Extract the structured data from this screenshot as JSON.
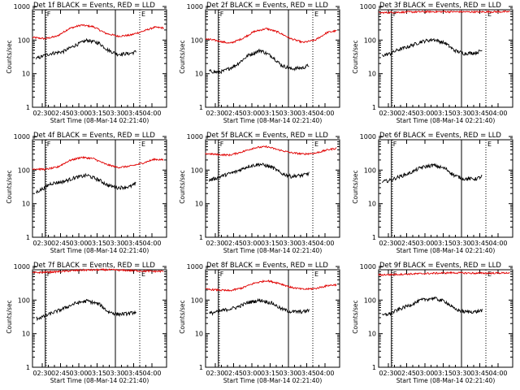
{
  "chart_data": [
    {
      "type": "line",
      "title": "Det 1f BLACK = Events, RED = LLD",
      "xlabel": "Start Time (08-Mar-14 02:21:40)",
      "ylabel": "Counts/sec",
      "yscale": "log",
      "ylim": [
        1,
        1000
      ],
      "x_ticks": [
        "02:30",
        "02:45",
        "03:00",
        "03:15",
        "03:30",
        "03:45",
        "04:00"
      ],
      "y_ticks": [
        "1",
        "10",
        "100",
        "1000"
      ],
      "markers": [
        {
          "label": "F",
          "at_min": 10.5
        },
        {
          "label": "",
          "at_min": 68
        },
        {
          "label": "E",
          "at_min": 88
        }
      ],
      "series": [
        {
          "name": "RED = LLD",
          "color": "#e00000",
          "x_min": [
            0,
            10,
            20,
            30,
            40,
            50,
            60,
            70,
            80,
            90,
            100,
            108
          ],
          "values": [
            120,
            110,
            130,
            220,
            280,
            250,
            160,
            130,
            140,
            180,
            240,
            230
          ]
        },
        {
          "name": "BLACK = Events",
          "color": "#000000",
          "x_min": [
            3,
            10,
            15,
            25,
            35,
            45,
            55,
            62,
            70,
            80,
            85
          ],
          "values": [
            28,
            35,
            40,
            45,
            70,
            100,
            80,
            50,
            38,
            40,
            45
          ]
        }
      ]
    },
    {
      "type": "line",
      "title": "Det 2f BLACK = Events, RED = LLD",
      "xlabel": "Start Time (08-Mar-14 02:21:40)",
      "ylabel": "Counts/sec",
      "yscale": "log",
      "ylim": [
        1,
        1000
      ],
      "x_ticks": [
        "02:30",
        "02:45",
        "03:00",
        "03:15",
        "03:30",
        "03:45",
        "04:00"
      ],
      "y_ticks": [
        "1",
        "10",
        "100",
        "1000"
      ],
      "markers": [
        {
          "label": "F",
          "at_min": 10.5
        },
        {
          "label": "",
          "at_min": 68
        },
        {
          "label": "E",
          "at_min": 88
        }
      ],
      "series": [
        {
          "name": "RED = LLD",
          "color": "#e00000",
          "x_min": [
            0,
            10,
            20,
            30,
            40,
            50,
            60,
            70,
            80,
            90,
            100,
            108
          ],
          "values": [
            110,
            95,
            80,
            110,
            180,
            220,
            170,
            110,
            85,
            100,
            170,
            190
          ]
        },
        {
          "name": "BLACK = Events",
          "color": "#000000",
          "x_min": [
            3,
            10,
            15,
            25,
            35,
            45,
            55,
            62,
            70,
            80,
            85
          ],
          "values": [
            12,
            11,
            12,
            18,
            35,
            50,
            32,
            18,
            14,
            15,
            18
          ]
        }
      ]
    },
    {
      "type": "line",
      "title": "Det 3f BLACK = Events, RED = LLD",
      "xlabel": "Start Time (08-Mar-14 02:21:40)",
      "ylabel": "Counts/sec",
      "yscale": "log",
      "ylim": [
        1,
        1000
      ],
      "x_ticks": [
        "02:30",
        "02:45",
        "03:00",
        "03:15",
        "03:30",
        "03:45",
        "04:00"
      ],
      "y_ticks": [
        "1",
        "10",
        "100",
        "1000"
      ],
      "markers": [
        {
          "label": "F",
          "at_min": 10.5
        },
        {
          "label": "",
          "at_min": 68
        },
        {
          "label": "E",
          "at_min": 88
        }
      ],
      "series": [
        {
          "name": "RED = LLD",
          "color": "#e00000",
          "x_min": [
            0,
            20,
            40,
            60,
            80,
            100,
            108
          ],
          "values": [
            650,
            680,
            700,
            700,
            690,
            700,
            700
          ]
        },
        {
          "name": "BLACK = Events",
          "color": "#000000",
          "x_min": [
            3,
            10,
            15,
            25,
            35,
            45,
            55,
            62,
            70,
            80,
            85
          ],
          "values": [
            35,
            40,
            50,
            65,
            90,
            105,
            80,
            50,
            40,
            42,
            50
          ]
        }
      ]
    },
    {
      "type": "line",
      "title": "Det 4f BLACK = Events, RED = LLD",
      "xlabel": "Start Time (08-Mar-14 02:21:40)",
      "ylabel": "Counts/sec",
      "yscale": "log",
      "ylim": [
        1,
        1000
      ],
      "x_ticks": [
        "02:30",
        "02:45",
        "03:00",
        "03:15",
        "03:30",
        "03:45",
        "04:00"
      ],
      "y_ticks": [
        "1",
        "10",
        "100",
        "1000"
      ],
      "markers": [
        {
          "label": "F",
          "at_min": 10.5
        },
        {
          "label": "",
          "at_min": 68
        },
        {
          "label": "E",
          "at_min": 88
        }
      ],
      "series": [
        {
          "name": "RED = LLD",
          "color": "#e00000",
          "x_min": [
            0,
            10,
            20,
            30,
            40,
            50,
            60,
            70,
            80,
            90,
            100,
            108
          ],
          "values": [
            110,
            105,
            120,
            190,
            240,
            220,
            150,
            120,
            130,
            160,
            210,
            200
          ]
        },
        {
          "name": "BLACK = Events",
          "color": "#000000",
          "x_min": [
            3,
            10,
            15,
            25,
            35,
            45,
            55,
            62,
            70,
            80,
            85
          ],
          "values": [
            22,
            30,
            40,
            45,
            60,
            70,
            50,
            35,
            30,
            32,
            40
          ]
        }
      ]
    },
    {
      "type": "line",
      "title": "Det 5f BLACK = Events, RED = LLD",
      "xlabel": "Start Time (08-Mar-14 02:21:40)",
      "ylabel": "Counts/sec",
      "yscale": "log",
      "ylim": [
        1,
        1000
      ],
      "x_ticks": [
        "02:30",
        "02:45",
        "03:00",
        "03:15",
        "03:30",
        "03:45",
        "04:00"
      ],
      "y_ticks": [
        "1",
        "10",
        "100",
        "1000"
      ],
      "markers": [
        {
          "label": "F",
          "at_min": 10.5
        },
        {
          "label": "",
          "at_min": 68
        },
        {
          "label": "E",
          "at_min": 88
        }
      ],
      "series": [
        {
          "name": "RED = LLD",
          "color": "#e00000",
          "x_min": [
            0,
            10,
            20,
            30,
            40,
            50,
            60,
            70,
            80,
            90,
            100,
            108
          ],
          "values": [
            310,
            290,
            280,
            350,
            460,
            500,
            400,
            330,
            300,
            320,
            400,
            450
          ]
        },
        {
          "name": "BLACK = Events",
          "color": "#000000",
          "x_min": [
            3,
            10,
            15,
            25,
            35,
            45,
            55,
            62,
            70,
            80,
            85
          ],
          "values": [
            50,
            60,
            70,
            90,
            130,
            150,
            120,
            80,
            65,
            70,
            80
          ]
        }
      ]
    },
    {
      "type": "line",
      "title": "Det 6f BLACK = Events, RED = LLD",
      "xlabel": "Start Time (08-Mar-14 02:21:40)",
      "ylabel": "Counts/sec",
      "yscale": "log",
      "ylim": [
        1,
        1000
      ],
      "x_ticks": [
        "02:30",
        "02:45",
        "03:00",
        "03:15",
        "03:30",
        "03:45",
        "04:00"
      ],
      "y_ticks": [
        "1",
        "10",
        "100",
        "1000"
      ],
      "markers": [
        {
          "label": "F",
          "at_min": 10.5
        },
        {
          "label": "",
          "at_min": 68
        },
        {
          "label": "E",
          "at_min": 88
        }
      ],
      "series": [
        {
          "name": "BLACK = Events",
          "color": "#000000",
          "x_min": [
            3,
            10,
            15,
            25,
            35,
            45,
            55,
            62,
            70,
            80,
            85
          ],
          "values": [
            45,
            50,
            60,
            80,
            120,
            140,
            110,
            70,
            55,
            55,
            65
          ]
        }
      ]
    },
    {
      "type": "line",
      "title": "Det 7f BLACK = Events, RED = LLD",
      "xlabel": "Start Time (08-Mar-14 02:21:40)",
      "ylabel": "Counts/sec",
      "yscale": "log",
      "ylim": [
        1,
        1000
      ],
      "x_ticks": [
        "02:30",
        "02:45",
        "03:00",
        "03:15",
        "03:30",
        "03:45",
        "04:00"
      ],
      "y_ticks": [
        "1",
        "10",
        "100",
        "1000"
      ],
      "markers": [
        {
          "label": "F",
          "at_min": 10.5
        },
        {
          "label": "",
          "at_min": 68
        },
        {
          "label": "E",
          "at_min": 88
        }
      ],
      "series": [
        {
          "name": "RED = LLD",
          "color": "#e00000",
          "x_min": [
            0,
            20,
            40,
            60,
            80,
            100,
            108
          ],
          "values": [
            650,
            700,
            780,
            800,
            760,
            720,
            720
          ]
        },
        {
          "name": "BLACK = Events",
          "color": "#000000",
          "x_min": [
            3,
            10,
            15,
            25,
            35,
            45,
            55,
            62,
            70,
            80,
            85
          ],
          "values": [
            28,
            33,
            40,
            55,
            80,
            95,
            75,
            45,
            38,
            40,
            45
          ]
        }
      ]
    },
    {
      "type": "line",
      "title": "Det 8f BLACK = Events, RED = LLD",
      "xlabel": "Start Time (08-Mar-14 02:21:40)",
      "ylabel": "Counts/sec",
      "yscale": "log",
      "ylim": [
        1,
        1000
      ],
      "x_ticks": [
        "02:30",
        "02:45",
        "03:00",
        "03:15",
        "03:30",
        "03:45",
        "04:00"
      ],
      "y_ticks": [
        "1",
        "10",
        "100",
        "1000"
      ],
      "markers": [
        {
          "label": "F",
          "at_min": 10.5
        },
        {
          "label": "",
          "at_min": 68
        },
        {
          "label": "E",
          "at_min": 88
        }
      ],
      "series": [
        {
          "name": "RED = LLD",
          "color": "#e00000",
          "x_min": [
            0,
            10,
            20,
            30,
            40,
            50,
            60,
            70,
            80,
            90,
            100,
            108
          ],
          "values": [
            210,
            200,
            190,
            230,
            320,
            380,
            320,
            240,
            210,
            220,
            270,
            290
          ]
        },
        {
          "name": "BLACK = Events",
          "color": "#000000",
          "x_min": [
            3,
            10,
            15,
            25,
            35,
            45,
            55,
            62,
            70,
            80,
            85
          ],
          "values": [
            40,
            45,
            50,
            60,
            85,
            100,
            80,
            55,
            45,
            45,
            50
          ]
        }
      ]
    },
    {
      "type": "line",
      "title": "Det 9f BLACK = Events, RED = LLD",
      "xlabel": "Start Time (08-Mar-14 02:21:40)",
      "ylabel": "Counts/sec",
      "yscale": "log",
      "ylim": [
        1,
        1000
      ],
      "x_ticks": [
        "02:30",
        "02:45",
        "03:00",
        "03:15",
        "03:30",
        "03:45",
        "04:00"
      ],
      "y_ticks": [
        "1",
        "10",
        "100",
        "1000"
      ],
      "markers": [
        {
          "label": "F",
          "at_min": 10.5
        },
        {
          "label": "",
          "at_min": 68
        },
        {
          "label": "E",
          "at_min": 88
        }
      ],
      "series": [
        {
          "name": "RED = LLD",
          "color": "#e00000",
          "x_min": [
            0,
            20,
            40,
            60,
            80,
            100,
            108
          ],
          "values": [
            560,
            590,
            620,
            650,
            630,
            640,
            650
          ]
        },
        {
          "name": "BLACK = Events",
          "color": "#000000",
          "x_min": [
            3,
            10,
            15,
            25,
            35,
            45,
            55,
            62,
            70,
            80,
            85
          ],
          "values": [
            35,
            40,
            50,
            70,
            100,
            115,
            90,
            55,
            45,
            45,
            50
          ]
        }
      ]
    }
  ]
}
